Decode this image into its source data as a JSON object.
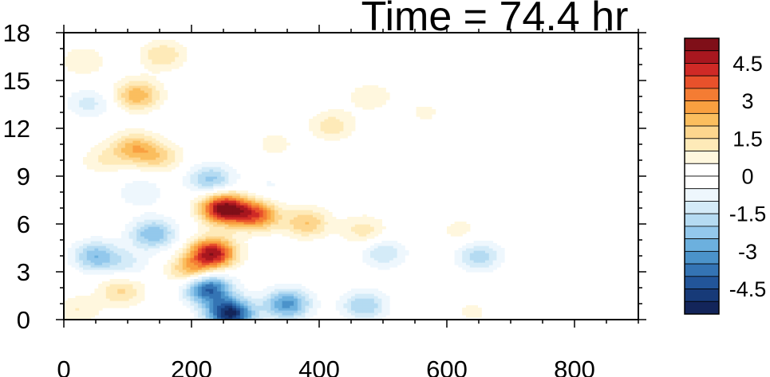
{
  "chart_data": {
    "type": "heatmap",
    "title": "Time = 74.4 hr",
    "xlabel": "",
    "ylabel": "",
    "xlim": [
      0,
      900
    ],
    "ylim": [
      0,
      18
    ],
    "x_ticks": [
      "0",
      "200",
      "400",
      "600",
      "800"
    ],
    "y_ticks": [
      "0",
      "3",
      "6",
      "9",
      "12",
      "15",
      "18"
    ],
    "colorbar": {
      "range": [
        -5.5,
        5.5
      ],
      "step": 0.5,
      "labels": [
        "4.5",
        "3",
        "1.5",
        "0",
        "-1.5",
        "-3",
        "-4.5"
      ],
      "colors": [
        "#7f0f18",
        "#a8171f",
        "#cf2a26",
        "#e8512b",
        "#f47c33",
        "#f9a040",
        "#fbbe5e",
        "#fdd68e",
        "#feeab8",
        "#fff7de",
        "#ffffff",
        "#ffffff",
        "#eef7fd",
        "#d4ebf8",
        "#b5dbf2",
        "#93c8ec",
        "#6cb0de",
        "#4b93ca",
        "#3474b4",
        "#225599",
        "#173a78",
        "#13255a"
      ]
    },
    "features": [
      {
        "x": 250,
        "y": 7.0,
        "value": 5.2
      },
      {
        "x": 300,
        "y": 6.6,
        "value": 3.6
      },
      {
        "x": 233,
        "y": 4.2,
        "value": 4.8
      },
      {
        "x": 380,
        "y": 6.1,
        "value": 2.0
      },
      {
        "x": 470,
        "y": 5.6,
        "value": 1.3
      },
      {
        "x": 620,
        "y": 5.6,
        "value": 0.7
      },
      {
        "x": 260,
        "y": 0.4,
        "value": -5.2
      },
      {
        "x": 350,
        "y": 1.0,
        "value": -3.2
      },
      {
        "x": 470,
        "y": 0.9,
        "value": -2.0
      },
      {
        "x": 225,
        "y": 2.0,
        "value": -4.2
      },
      {
        "x": 500,
        "y": 4.2,
        "value": -1.5
      },
      {
        "x": 650,
        "y": 4.0,
        "value": -1.8
      },
      {
        "x": 230,
        "y": 8.8,
        "value": -2.2
      },
      {
        "x": 110,
        "y": 10.8,
        "value": 2.2
      },
      {
        "x": 150,
        "y": 10.2,
        "value": 1.5
      },
      {
        "x": 60,
        "y": 10.0,
        "value": 0.9
      },
      {
        "x": 115,
        "y": 14.1,
        "value": 2.4
      },
      {
        "x": 155,
        "y": 16.6,
        "value": 1.5
      },
      {
        "x": 30,
        "y": 16.2,
        "value": 1.0
      },
      {
        "x": 120,
        "y": 8.0,
        "value": -1.0
      },
      {
        "x": 140,
        "y": 5.4,
        "value": -2.5
      },
      {
        "x": 50,
        "y": 4.0,
        "value": -2.4
      },
      {
        "x": 40,
        "y": 13.6,
        "value": -1.2
      },
      {
        "x": 200,
        "y": 3.1,
        "value": 2.3
      },
      {
        "x": 90,
        "y": 1.8,
        "value": 1.6
      },
      {
        "x": 20,
        "y": 0.6,
        "value": 1.0
      },
      {
        "x": 420,
        "y": 12.2,
        "value": 1.3
      },
      {
        "x": 480,
        "y": 14.0,
        "value": 0.9
      },
      {
        "x": 565,
        "y": 13.0,
        "value": 0.6
      },
      {
        "x": 650,
        "y": 15.8,
        "value": 0.5
      },
      {
        "x": 330,
        "y": 11.0,
        "value": 0.7
      },
      {
        "x": 740,
        "y": 16.6,
        "value": 0.3
      },
      {
        "x": 640,
        "y": 0.5,
        "value": 0.6
      },
      {
        "x": 100,
        "y": 3.5,
        "value": -1.0
      },
      {
        "x": 320,
        "y": 8.3,
        "value": -0.6
      }
    ]
  }
}
